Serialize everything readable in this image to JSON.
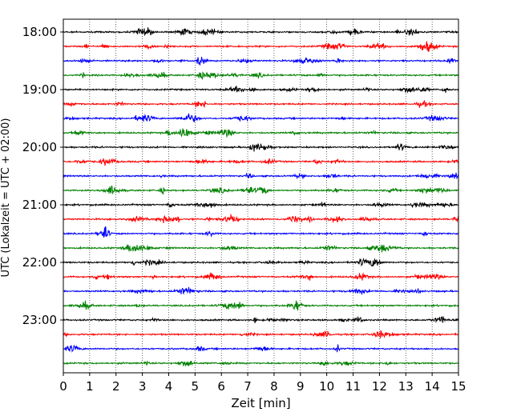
{
  "chart_data": {
    "type": "line",
    "title": "",
    "xlabel": "Zeit  [min]",
    "ylabel": "UTC (Lokalzeit = UTC + 02:00)",
    "xlim": [
      0,
      15
    ],
    "x_ticks": [
      "0",
      "1",
      "2",
      "3",
      "4",
      "5",
      "6",
      "7",
      "8",
      "9",
      "10",
      "11",
      "12",
      "13",
      "14",
      "15"
    ],
    "y_ticks": [
      "18:00",
      "19:00",
      "20:00",
      "21:00",
      "22:00",
      "23:00"
    ],
    "grid": "vertical dotted lines at each minute",
    "trace_interval_minutes": 15,
    "start_time": "18:00",
    "trace_colors": [
      "#000000",
      "#ff0000",
      "#0000ff",
      "#008000"
    ],
    "series": [
      {
        "start": "18:00"
      },
      {
        "start": "18:15"
      },
      {
        "start": "18:30"
      },
      {
        "start": "18:45"
      },
      {
        "start": "19:00"
      },
      {
        "start": "19:15"
      },
      {
        "start": "19:30"
      },
      {
        "start": "19:45"
      },
      {
        "start": "20:00"
      },
      {
        "start": "20:15"
      },
      {
        "start": "20:30"
      },
      {
        "start": "20:45"
      },
      {
        "start": "21:00"
      },
      {
        "start": "21:15"
      },
      {
        "start": "21:30"
      },
      {
        "start": "21:45"
      },
      {
        "start": "22:00"
      },
      {
        "start": "22:15"
      },
      {
        "start": "22:30"
      },
      {
        "start": "22:45"
      },
      {
        "start": "23:00"
      },
      {
        "start": "23:15"
      },
      {
        "start": "23:30"
      },
      {
        "start": "23:45"
      }
    ]
  }
}
